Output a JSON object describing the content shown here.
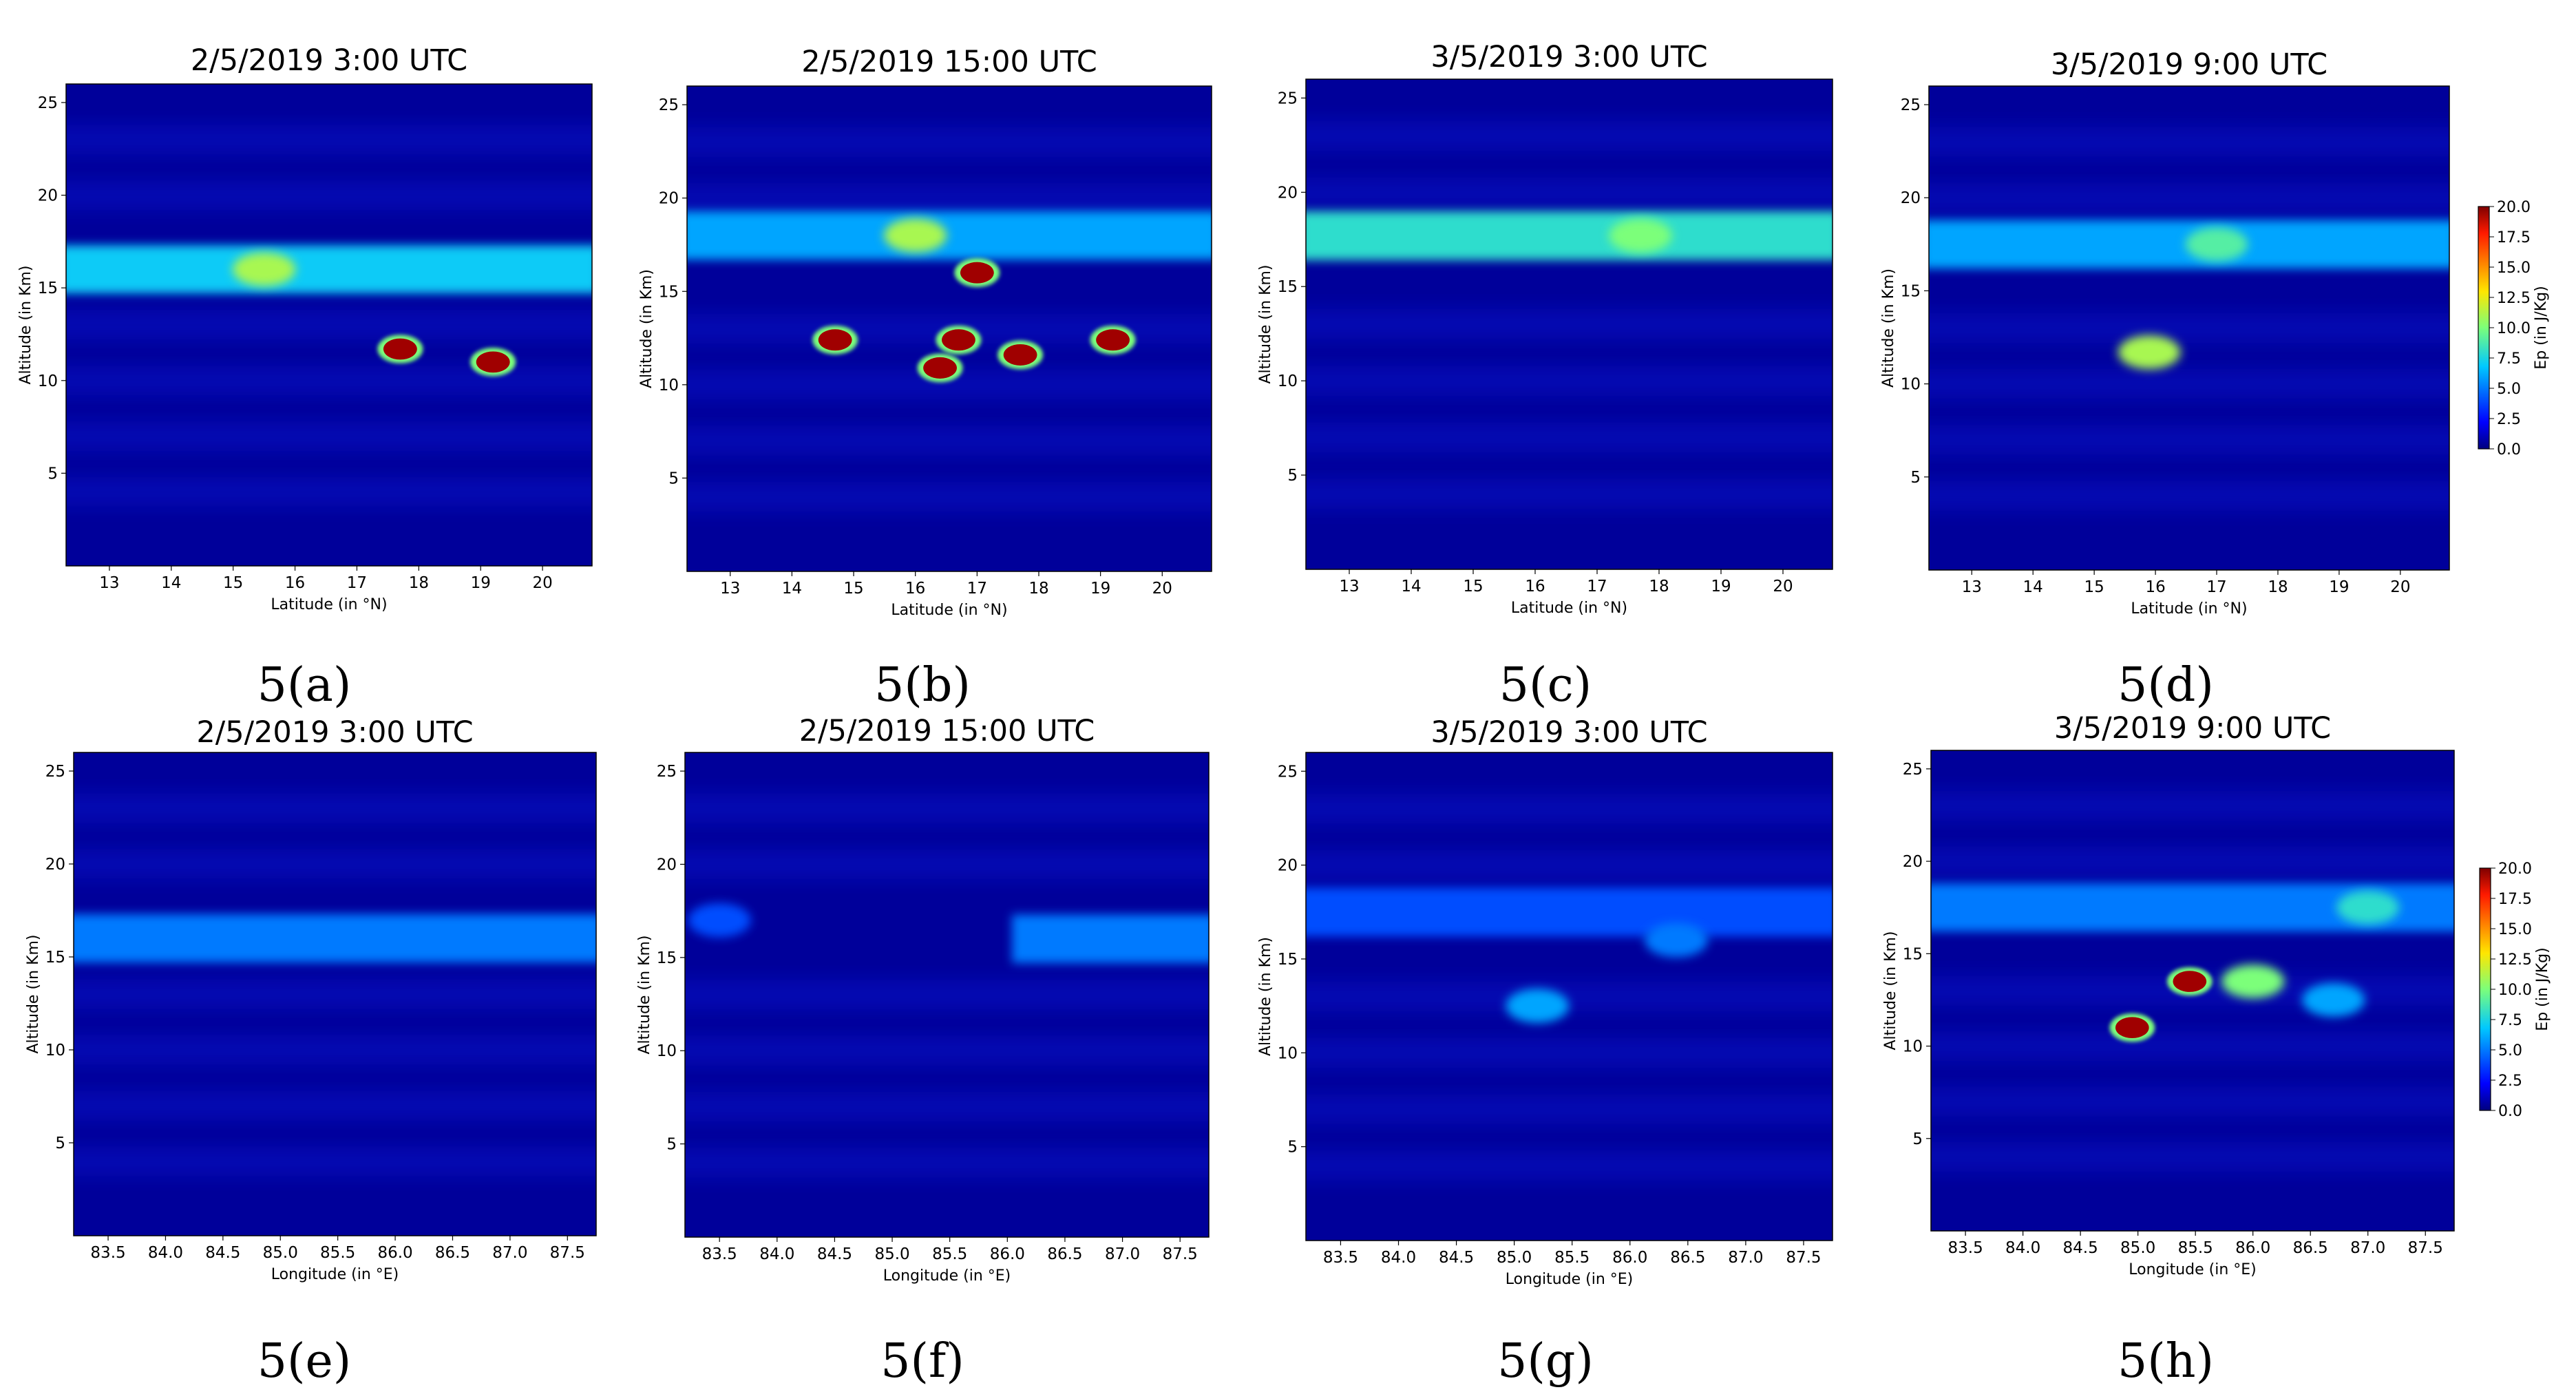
{
  "figure": {
    "panels": [
      {
        "id": "a",
        "title": "2/5/2019  3:00 UTC",
        "caption": "5(a)"
      },
      {
        "id": "b",
        "title": "2/5/2019  15:00 UTC",
        "caption": "5(b)"
      },
      {
        "id": "c",
        "title": "3/5/2019  3:00 UTC",
        "caption": "5(c)"
      },
      {
        "id": "d",
        "title": "3/5/2019  9:00 UTC",
        "caption": "5(d)"
      },
      {
        "id": "e",
        "title": "2/5/2019  3:00 UTC",
        "caption": "5(e)"
      },
      {
        "id": "f",
        "title": "2/5/2019  15:00 UTC",
        "caption": "5(f)"
      },
      {
        "id": "g",
        "title": "3/5/2019  3:00 UTC",
        "caption": "5(g)"
      },
      {
        "id": "h",
        "title": "3/5/2019  9:00 UTC",
        "caption": "5(h)"
      }
    ],
    "colorbar_label": "Ep (in J/Kg)",
    "colorbar_ticks": [
      "0.0",
      "2.5",
      "5.0",
      "7.5",
      "10.0",
      "12.5",
      "15.0",
      "17.5",
      "20.0"
    ]
  },
  "chart_data": [
    {
      "panel": "5(a)",
      "type": "heatmap",
      "title": "2/5/2019  3:00 UTC",
      "xlabel": "Latitude (in $^\\circ$N)",
      "ylabel": "Altitude (in Km)",
      "xlim": [
        12.3,
        20.8
      ],
      "ylim": [
        0,
        26
      ],
      "xticks": [
        "13",
        "14",
        "15",
        "16",
        "17",
        "18",
        "19",
        "20"
      ],
      "yticks": [
        "5",
        "10",
        "15",
        "20",
        "25"
      ],
      "colormap": "jet",
      "clim": [
        0,
        20
      ],
      "grid": false,
      "features": [
        {
          "kind": "band",
          "alt": 16,
          "x_from": 12.3,
          "x_to": 20.8,
          "ep": 7
        },
        {
          "kind": "patch",
          "lat": 15.5,
          "alt": 16,
          "ep": 11
        },
        {
          "kind": "patch",
          "lat": 17.7,
          "alt": 11.7,
          "ep": 20
        },
        {
          "kind": "patch",
          "lat": 19.2,
          "alt": 11,
          "ep": 20
        }
      ]
    },
    {
      "panel": "5(b)",
      "type": "heatmap",
      "title": "2/5/2019  15:00 UTC",
      "xlabel": "Latitude (in $^\\circ$N)",
      "ylabel": "Altitude (in Km)",
      "xlim": [
        12.3,
        20.8
      ],
      "ylim": [
        0,
        26
      ],
      "xticks": [
        "13",
        "14",
        "15",
        "16",
        "17",
        "18",
        "19",
        "20"
      ],
      "yticks": [
        "5",
        "10",
        "15",
        "20",
        "25"
      ],
      "colormap": "jet",
      "clim": [
        0,
        20
      ],
      "grid": false,
      "features": [
        {
          "kind": "band",
          "alt": 18,
          "x_from": 12.3,
          "x_to": 20.8,
          "ep": 6
        },
        {
          "kind": "patch",
          "lat": 16,
          "alt": 18,
          "ep": 11
        },
        {
          "kind": "patch",
          "lat": 17,
          "alt": 16,
          "ep": 18
        },
        {
          "kind": "patch",
          "lat": 14.7,
          "alt": 12.4,
          "ep": 20
        },
        {
          "kind": "patch",
          "lat": 16.7,
          "alt": 12.4,
          "ep": 20
        },
        {
          "kind": "patch",
          "lat": 17.7,
          "alt": 11.6,
          "ep": 20
        },
        {
          "kind": "patch",
          "lat": 16.4,
          "alt": 10.9,
          "ep": 20
        },
        {
          "kind": "patch",
          "lat": 19.2,
          "alt": 12.4,
          "ep": 20
        }
      ]
    },
    {
      "panel": "5(c)",
      "type": "heatmap",
      "title": "3/5/2019  3:00 UTC",
      "xlabel": "Latitude (in $^\\circ$N)",
      "ylabel": "Altitude (in Km)",
      "xlim": [
        12.3,
        20.8
      ],
      "ylim": [
        0,
        26
      ],
      "xticks": [
        "13",
        "14",
        "15",
        "16",
        "17",
        "18",
        "19",
        "20"
      ],
      "yticks": [
        "5",
        "10",
        "15",
        "20",
        "25"
      ],
      "colormap": "jet",
      "clim": [
        0,
        20
      ],
      "grid": false,
      "features": [
        {
          "kind": "band",
          "alt": 17.7,
          "x_from": 12.3,
          "x_to": 20.8,
          "ep": 8
        },
        {
          "kind": "patch",
          "lat": 17.7,
          "alt": 17.7,
          "ep": 10
        }
      ]
    },
    {
      "panel": "5(d)",
      "type": "heatmap",
      "title": "3/5/2019  9:00 UTC",
      "xlabel": "Latitude (in $^\\circ$N)",
      "ylabel": "Altitude (in Km)",
      "xlim": [
        12.3,
        20.8
      ],
      "ylim": [
        0,
        26
      ],
      "xticks": [
        "13",
        "14",
        "15",
        "16",
        "17",
        "18",
        "19",
        "20"
      ],
      "yticks": [
        "5",
        "10",
        "15",
        "20",
        "25"
      ],
      "colormap": "jet",
      "clim": [
        0,
        20
      ],
      "grid": false,
      "features": [
        {
          "kind": "band",
          "alt": 17.5,
          "x_from": 12.3,
          "x_to": 20.8,
          "ep": 6
        },
        {
          "kind": "patch",
          "lat": 17,
          "alt": 17.5,
          "ep": 9
        },
        {
          "kind": "patch",
          "lat": 15.9,
          "alt": 11.7,
          "ep": 11
        }
      ]
    },
    {
      "panel": "5(e)",
      "type": "heatmap",
      "title": "2/5/2019  3:00 UTC",
      "xlabel": "Longitude (in $^\\circ$E)",
      "ylabel": "Altitude (in Km)",
      "xlim": [
        83.2,
        87.75
      ],
      "ylim": [
        0,
        26
      ],
      "xticks": [
        "83.5",
        "84.0",
        "84.5",
        "85.0",
        "85.5",
        "86.0",
        "86.5",
        "87.0",
        "87.5"
      ],
      "yticks": [
        "5",
        "10",
        "15",
        "20",
        "25"
      ],
      "colormap": "jet",
      "clim": [
        0,
        20
      ],
      "grid": false,
      "features": [
        {
          "kind": "band",
          "alt": 16,
          "x_from": 83.2,
          "x_to": 87.75,
          "ep": 5
        }
      ]
    },
    {
      "panel": "5(f)",
      "type": "heatmap",
      "title": "2/5/2019  15:00 UTC",
      "xlabel": "Longitude (in $^\\circ$E)",
      "ylabel": "Altitude (in Km)",
      "xlim": [
        83.2,
        87.75
      ],
      "ylim": [
        0,
        26
      ],
      "xticks": [
        "83.5",
        "84.0",
        "84.5",
        "85.0",
        "85.5",
        "86.0",
        "86.5",
        "87.0",
        "87.5"
      ],
      "yticks": [
        "5",
        "10",
        "15",
        "20",
        "25"
      ],
      "colormap": "jet",
      "clim": [
        0,
        20
      ],
      "grid": false,
      "features": [
        {
          "kind": "band",
          "alt": 16,
          "x_from": 86.1,
          "x_to": 87.75,
          "ep": 5
        },
        {
          "kind": "patch",
          "lon": 83.5,
          "alt": 17,
          "ep": 4
        }
      ]
    },
    {
      "panel": "5(g)",
      "type": "heatmap",
      "title": "3/5/2019  3:00 UTC",
      "xlabel": "Longitude (in $^\\circ$E)",
      "ylabel": "Altitude (in Km)",
      "xlim": [
        83.2,
        87.75
      ],
      "ylim": [
        0,
        26
      ],
      "xticks": [
        "83.5",
        "84.0",
        "84.5",
        "85.0",
        "85.5",
        "86.0",
        "86.5",
        "87.0",
        "87.5"
      ],
      "yticks": [
        "5",
        "10",
        "15",
        "20",
        "25"
      ],
      "colormap": "jet",
      "clim": [
        0,
        20
      ],
      "grid": false,
      "features": [
        {
          "kind": "band",
          "alt": 17.5,
          "x_from": 83.2,
          "x_to": 87.75,
          "ep": 4
        },
        {
          "kind": "patch",
          "lon": 85.2,
          "alt": 12.5,
          "ep": 6
        },
        {
          "kind": "patch",
          "lon": 86.4,
          "alt": 16,
          "ep": 5
        }
      ]
    },
    {
      "panel": "5(h)",
      "type": "heatmap",
      "title": "3/5/2019  9:00 UTC",
      "xlabel": "Longitude (in $^\\circ$E)",
      "ylabel": "Altitude (in Km)",
      "xlim": [
        83.2,
        87.75
      ],
      "ylim": [
        0,
        26
      ],
      "xticks": [
        "83.5",
        "84.0",
        "84.5",
        "85.0",
        "85.5",
        "86.0",
        "86.5",
        "87.0",
        "87.5"
      ],
      "yticks": [
        "5",
        "10",
        "15",
        "20",
        "25"
      ],
      "colormap": "jet",
      "clim": [
        0,
        20
      ],
      "grid": false,
      "features": [
        {
          "kind": "band",
          "alt": 17.5,
          "x_from": 83.2,
          "x_to": 87.75,
          "ep": 5
        },
        {
          "kind": "patch",
          "lon": 87,
          "alt": 17.5,
          "ep": 8
        },
        {
          "kind": "patch",
          "lon": 85.45,
          "alt": 13.5,
          "ep": 20
        },
        {
          "kind": "patch",
          "lon": 84.95,
          "alt": 11,
          "ep": 20
        },
        {
          "kind": "patch",
          "lon": 86,
          "alt": 13.5,
          "ep": 10
        },
        {
          "kind": "patch",
          "lon": 86.7,
          "alt": 12.5,
          "ep": 6
        }
      ]
    }
  ]
}
